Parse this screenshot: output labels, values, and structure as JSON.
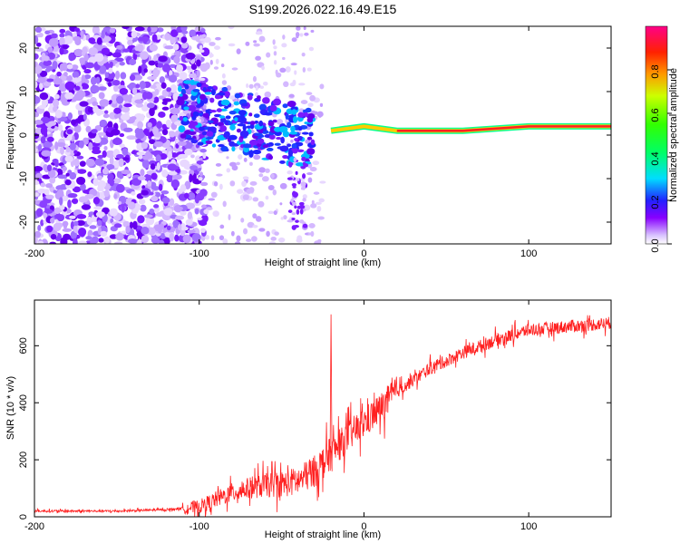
{
  "title": "S199.2026.022.16.49.E15",
  "chart_data": [
    {
      "type": "heatmap",
      "xlabel": "Height of straight line (km)",
      "ylabel": "Frequency (Hz)",
      "xlim": [
        -200,
        150
      ],
      "ylim": [
        -25,
        25
      ],
      "xticks": [
        -200,
        -100,
        0,
        100
      ],
      "yticks": [
        -20,
        -10,
        0,
        10,
        20
      ],
      "grid": false,
      "colorbar": {
        "label": "Normalized spectral amplitude",
        "range": [
          0,
          1
        ],
        "ticks": [
          "0.0",
          "0.2",
          "0.4",
          "0.6",
          "0.8"
        ]
      },
      "ridge": [
        {
          "x": -100,
          "freq": 6,
          "amp": 0.25
        },
        {
          "x": -80,
          "freq": 3,
          "amp": 0.2
        },
        {
          "x": -60,
          "freq": 2,
          "amp": 0.15
        },
        {
          "x": -40,
          "freq": -1,
          "amp": 0.15
        },
        {
          "x": -20,
          "freq": 1,
          "amp": 0.3
        },
        {
          "x": 0,
          "freq": 2,
          "amp": 0.5
        },
        {
          "x": 20,
          "freq": 1,
          "amp": 0.9
        },
        {
          "x": 60,
          "freq": 1,
          "amp": 0.9
        },
        {
          "x": 100,
          "freq": 2,
          "amp": 0.9
        },
        {
          "x": 150,
          "freq": 2,
          "amp": 0.85
        }
      ]
    },
    {
      "type": "line",
      "xlabel": "Height of straight line (km)",
      "ylabel": "SNR (10 * v/v)",
      "xlim": [
        -200,
        150
      ],
      "ylim": [
        0,
        760
      ],
      "xticks": [
        -200,
        -100,
        0,
        100
      ],
      "yticks": [
        0,
        200,
        400,
        600
      ],
      "color": "#ff2020",
      "series": [
        {
          "name": "SNR",
          "x": [
            -200,
            -150,
            -120,
            -100,
            -90,
            -80,
            -70,
            -60,
            -50,
            -40,
            -30,
            -20,
            -10,
            0,
            10,
            20,
            30,
            40,
            60,
            80,
            100,
            120,
            150
          ],
          "y": [
            20,
            20,
            25,
            35,
            60,
            85,
            100,
            110,
            115,
            125,
            160,
            220,
            280,
            330,
            380,
            440,
            480,
            520,
            575,
            620,
            655,
            665,
            680
          ]
        }
      ],
      "annotations": [
        {
          "x": -20,
          "y": 710,
          "note": "spike"
        }
      ]
    }
  ]
}
